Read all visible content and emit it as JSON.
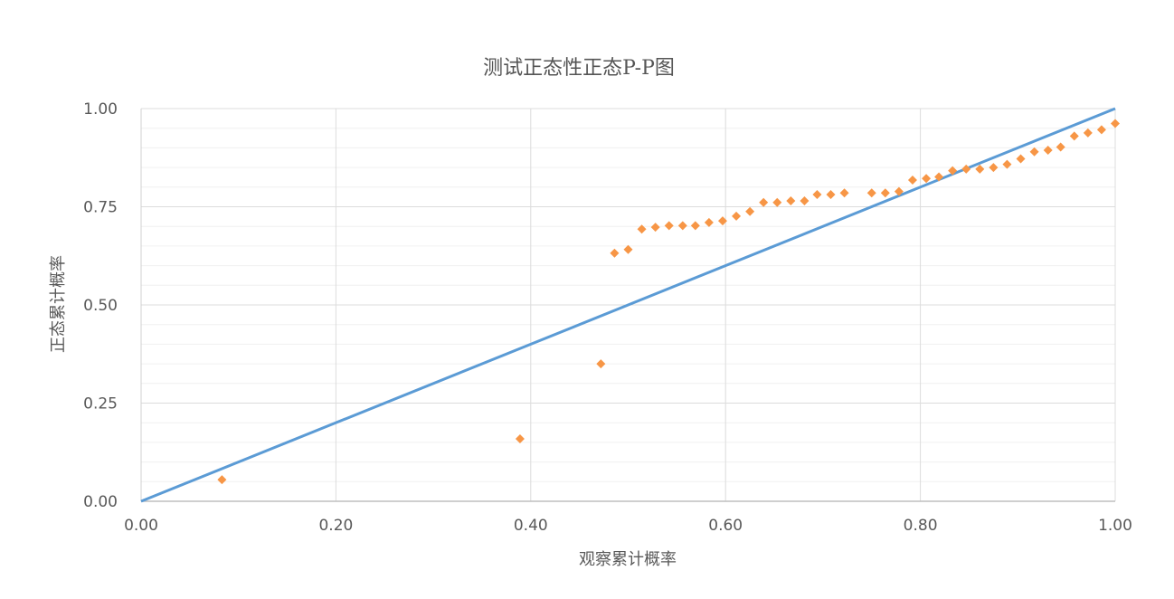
{
  "chart_data": {
    "type": "scatter",
    "title": "测试正态性正态P-P图",
    "xlabel": "观察累计概率",
    "ylabel": "正态累计概率",
    "xlim": [
      0,
      1
    ],
    "ylim": [
      0,
      1
    ],
    "x_ticks": [
      "0.00",
      "0.20",
      "0.40",
      "0.60",
      "0.80",
      "1.00"
    ],
    "y_ticks": [
      "0.00",
      "0.25",
      "0.50",
      "0.75",
      "1.00"
    ],
    "grid": true,
    "legend": "none",
    "colors": {
      "reference_line": "#5b9bd5",
      "points": "#f79646"
    },
    "reference_line": [
      [
        0,
        0
      ],
      [
        1,
        1
      ]
    ],
    "points": [
      [
        0.083,
        0.055
      ],
      [
        0.389,
        0.159
      ],
      [
        0.472,
        0.35
      ],
      [
        0.486,
        0.632
      ],
      [
        0.5,
        0.641
      ],
      [
        0.514,
        0.693
      ],
      [
        0.528,
        0.698
      ],
      [
        0.542,
        0.702
      ],
      [
        0.556,
        0.702
      ],
      [
        0.569,
        0.702
      ],
      [
        0.583,
        0.71
      ],
      [
        0.597,
        0.714
      ],
      [
        0.611,
        0.726
      ],
      [
        0.625,
        0.738
      ],
      [
        0.639,
        0.761
      ],
      [
        0.653,
        0.761
      ],
      [
        0.667,
        0.765
      ],
      [
        0.681,
        0.765
      ],
      [
        0.694,
        0.781
      ],
      [
        0.708,
        0.781
      ],
      [
        0.722,
        0.785
      ],
      [
        0.75,
        0.785
      ],
      [
        0.764,
        0.785
      ],
      [
        0.778,
        0.789
      ],
      [
        0.792,
        0.818
      ],
      [
        0.806,
        0.822
      ],
      [
        0.819,
        0.826
      ],
      [
        0.833,
        0.842
      ],
      [
        0.847,
        0.846
      ],
      [
        0.861,
        0.846
      ],
      [
        0.875,
        0.85
      ],
      [
        0.889,
        0.858
      ],
      [
        0.903,
        0.872
      ],
      [
        0.917,
        0.89
      ],
      [
        0.931,
        0.894
      ],
      [
        0.944,
        0.902
      ],
      [
        0.958,
        0.93
      ],
      [
        0.972,
        0.938
      ],
      [
        0.986,
        0.946
      ],
      [
        1.0,
        0.962
      ]
    ]
  }
}
